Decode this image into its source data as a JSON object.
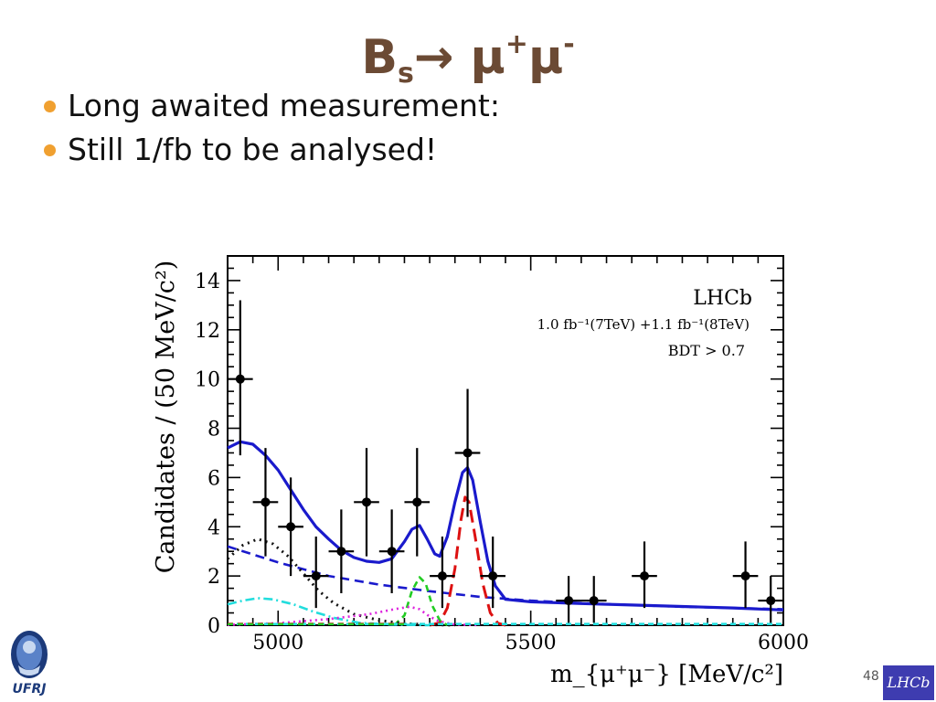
{
  "slide": {
    "title_main": "B",
    "title_sub": "s",
    "title_arrow": "→",
    "title_mu1": "μ",
    "title_plus": "+",
    "title_mu2": "μ",
    "title_minus": "-",
    "bullets": [
      "Long awaited measurement:",
      "Still 1/fb to be analysed!"
    ],
    "page_number": "48",
    "logo_left_text": "UFRJ",
    "logo_right_text": "LHCb",
    "bullet_color": "#f0a030",
    "title_color": "#6b4a34"
  },
  "chart_data": {
    "type": "scatter",
    "ylabel": "Candidates / (50 MeV/c²)",
    "xlabel": "m_{μ⁺μ⁻} [MeV/c²]",
    "annotations": [
      "LHCb",
      "1.0 fb⁻¹(7TeV) +1.1 fb⁻¹(8TeV)",
      "BDT > 0.7"
    ],
    "xlim": [
      4900,
      6000
    ],
    "ylim": [
      0,
      15
    ],
    "x_ticks": [
      5000,
      5500,
      6000
    ],
    "y_ticks": [
      0,
      2,
      4,
      6,
      8,
      10,
      12,
      14
    ],
    "data_points": [
      {
        "x": 4925,
        "y": 10,
        "yerr_low": 3.1,
        "yerr_high": 3.2
      },
      {
        "x": 4975,
        "y": 5,
        "yerr_low": 2.2,
        "yerr_high": 2.2
      },
      {
        "x": 5025,
        "y": 4,
        "yerr_low": 2.0,
        "yerr_high": 2.0
      },
      {
        "x": 5075,
        "y": 2,
        "yerr_low": 1.3,
        "yerr_high": 1.6
      },
      {
        "x": 5125,
        "y": 3,
        "yerr_low": 1.7,
        "yerr_high": 1.7
      },
      {
        "x": 5175,
        "y": 5,
        "yerr_low": 2.2,
        "yerr_high": 2.2
      },
      {
        "x": 5225,
        "y": 3,
        "yerr_low": 1.7,
        "yerr_high": 1.7
      },
      {
        "x": 5275,
        "y": 5,
        "yerr_low": 2.2,
        "yerr_high": 2.2
      },
      {
        "x": 5325,
        "y": 2,
        "yerr_low": 1.3,
        "yerr_high": 1.6
      },
      {
        "x": 5375,
        "y": 7,
        "yerr_low": 2.6,
        "yerr_high": 2.6
      },
      {
        "x": 5425,
        "y": 2,
        "yerr_low": 1.3,
        "yerr_high": 1.6
      },
      {
        "x": 5575,
        "y": 1,
        "yerr_low": 0.9,
        "yerr_high": 1.0
      },
      {
        "x": 5625,
        "y": 1,
        "yerr_low": 0.9,
        "yerr_high": 1.0
      },
      {
        "x": 5725,
        "y": 2,
        "yerr_low": 1.3,
        "yerr_high": 1.4
      },
      {
        "x": 5925,
        "y": 2,
        "yerr_low": 1.3,
        "yerr_high": 1.4
      },
      {
        "x": 5975,
        "y": 1,
        "yerr_low": 0.9,
        "yerr_high": 1.0
      }
    ],
    "x_half_width": 25,
    "curves": [
      {
        "id": "total-fit",
        "color": "#1a1acc",
        "dash": "",
        "width": 3.2,
        "points": [
          [
            4900,
            7.2
          ],
          [
            4925,
            7.45
          ],
          [
            4950,
            7.35
          ],
          [
            4975,
            6.9
          ],
          [
            5000,
            6.3
          ],
          [
            5025,
            5.5
          ],
          [
            5050,
            4.7
          ],
          [
            5075,
            4.0
          ],
          [
            5100,
            3.5
          ],
          [
            5125,
            3.05
          ],
          [
            5150,
            2.75
          ],
          [
            5175,
            2.6
          ],
          [
            5200,
            2.55
          ],
          [
            5225,
            2.7
          ],
          [
            5250,
            3.4
          ],
          [
            5265,
            3.9
          ],
          [
            5280,
            4.05
          ],
          [
            5295,
            3.5
          ],
          [
            5310,
            2.9
          ],
          [
            5320,
            2.8
          ],
          [
            5335,
            3.6
          ],
          [
            5350,
            5.0
          ],
          [
            5365,
            6.2
          ],
          [
            5375,
            6.4
          ],
          [
            5385,
            5.9
          ],
          [
            5400,
            4.2
          ],
          [
            5415,
            2.6
          ],
          [
            5430,
            1.6
          ],
          [
            5450,
            1.05
          ],
          [
            5500,
            0.95
          ],
          [
            5600,
            0.88
          ],
          [
            5700,
            0.82
          ],
          [
            5800,
            0.76
          ],
          [
            5900,
            0.7
          ],
          [
            6000,
            0.62
          ]
        ]
      },
      {
        "id": "combinatorial-bkg",
        "color": "#1a1acc",
        "dash": "10,6",
        "width": 2.6,
        "points": [
          [
            4900,
            3.2
          ],
          [
            5000,
            2.55
          ],
          [
            5100,
            2.0
          ],
          [
            5200,
            1.65
          ],
          [
            5300,
            1.38
          ],
          [
            5400,
            1.15
          ],
          [
            5500,
            1.0
          ],
          [
            5600,
            0.9
          ],
          [
            5700,
            0.82
          ],
          [
            5800,
            0.75
          ],
          [
            5900,
            0.7
          ],
          [
            6000,
            0.65
          ]
        ]
      },
      {
        "id": "bs-signal",
        "color": "#dd1111",
        "dash": "14,7",
        "width": 3,
        "points": [
          [
            5300,
            0
          ],
          [
            5320,
            0.1
          ],
          [
            5335,
            0.7
          ],
          [
            5350,
            2.3
          ],
          [
            5362,
            4.3
          ],
          [
            5370,
            5.2
          ],
          [
            5378,
            5.0
          ],
          [
            5390,
            3.6
          ],
          [
            5405,
            1.7
          ],
          [
            5420,
            0.5
          ],
          [
            5435,
            0.08
          ],
          [
            5450,
            0
          ]
        ]
      },
      {
        "id": "bd-signal",
        "color": "#22cc22",
        "dash": "7,5",
        "width": 2.6,
        "points": [
          [
            5230,
            0
          ],
          [
            5250,
            0.4
          ],
          [
            5265,
            1.4
          ],
          [
            5280,
            1.95
          ],
          [
            5292,
            1.7
          ],
          [
            5305,
            0.8
          ],
          [
            5320,
            0.2
          ],
          [
            5335,
            0
          ]
        ]
      },
      {
        "id": "partially-reco-bkg",
        "color": "#111111",
        "dash": "2,5",
        "width": 3,
        "points": [
          [
            4900,
            2.7
          ],
          [
            4930,
            3.25
          ],
          [
            4960,
            3.5
          ],
          [
            4990,
            3.3
          ],
          [
            5020,
            2.8
          ],
          [
            5050,
            2.1
          ],
          [
            5080,
            1.4
          ],
          [
            5110,
            0.9
          ],
          [
            5150,
            0.45
          ],
          [
            5200,
            0.2
          ],
          [
            5250,
            0.07
          ],
          [
            5300,
            0.02
          ],
          [
            5350,
            0
          ]
        ]
      },
      {
        "id": "exclusive-bkg-cyan",
        "color": "#22dddd",
        "dash": "10,4,2,4",
        "width": 2.6,
        "points": [
          [
            4900,
            0.85
          ],
          [
            4930,
            1.0
          ],
          [
            4960,
            1.1
          ],
          [
            4990,
            1.05
          ],
          [
            5030,
            0.85
          ],
          [
            5070,
            0.55
          ],
          [
            5110,
            0.3
          ],
          [
            5160,
            0.1
          ],
          [
            5220,
            0.03
          ],
          [
            5300,
            0
          ]
        ]
      },
      {
        "id": "misid-bkg-magenta",
        "color": "#dd22dd",
        "dash": "2,4",
        "width": 2.6,
        "points": [
          [
            4900,
            0.02
          ],
          [
            5000,
            0.08
          ],
          [
            5100,
            0.25
          ],
          [
            5180,
            0.45
          ],
          [
            5230,
            0.65
          ],
          [
            5260,
            0.75
          ],
          [
            5280,
            0.65
          ],
          [
            5300,
            0.35
          ],
          [
            5320,
            0.15
          ],
          [
            5350,
            0.03
          ],
          [
            5400,
            0
          ]
        ]
      },
      {
        "id": "cyan-baseline",
        "color": "#22dddd",
        "dash": "6,4",
        "width": 2.6,
        "points": [
          [
            4900,
            0.05
          ],
          [
            6000,
            0.05
          ]
        ]
      },
      {
        "id": "red-baseline",
        "color": "#dd1111",
        "dash": "6,5",
        "width": 2.2,
        "points": [
          [
            4900,
            0.06
          ],
          [
            5250,
            0.06
          ]
        ]
      },
      {
        "id": "green-baseline",
        "color": "#22cc22",
        "dash": "6,5",
        "width": 2.2,
        "points": [
          [
            4900,
            0.04
          ],
          [
            5250,
            0.04
          ]
        ]
      }
    ]
  }
}
